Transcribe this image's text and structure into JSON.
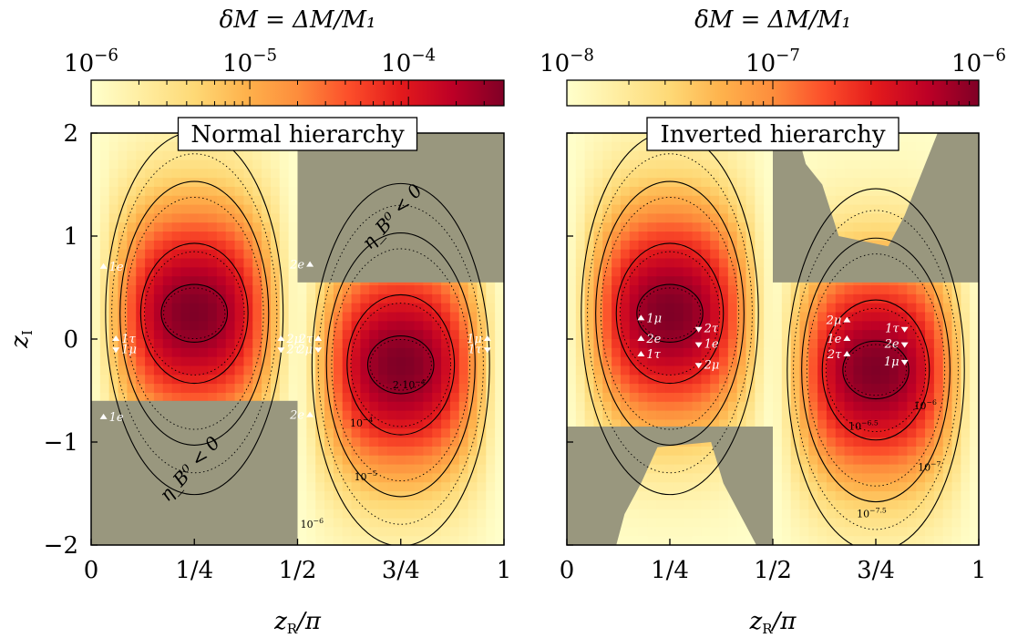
{
  "chart_data": [
    {
      "type": "heatmap",
      "title": "Normal hierarchy",
      "colorbar": {
        "label": "δM = ΔM/M₁",
        "scale": "log",
        "range": [
          1e-06,
          0.0004
        ],
        "ticks": [
          {
            "base": "10",
            "exp": "−6",
            "value": 1e-06
          },
          {
            "base": "10",
            "exp": "−5",
            "value": 1e-05
          },
          {
            "base": "10",
            "exp": "−4",
            "value": 0.0001
          }
        ]
      },
      "x": {
        "label_main": "z",
        "label_sub": "R",
        "label_tail": "/π",
        "range": [
          0,
          1
        ],
        "ticks": [
          {
            "v": 0,
            "t": "0"
          },
          {
            "v": 0.25,
            "t": "1/4"
          },
          {
            "v": 0.5,
            "t": "1/2"
          },
          {
            "v": 0.75,
            "t": "3/4"
          },
          {
            "v": 1,
            "t": "1"
          }
        ]
      },
      "y": {
        "label_main": "z",
        "label_sub": "I",
        "range": [
          -2,
          2
        ],
        "ticks": [
          {
            "v": 2,
            "t": "2"
          },
          {
            "v": 1,
            "t": "1"
          },
          {
            "v": 0,
            "t": "0"
          },
          {
            "v": -1,
            "t": "−1"
          },
          {
            "v": -2,
            "t": "−2"
          }
        ]
      },
      "masked_region_label": "η_B⁰ < 0",
      "masked_regions": [
        {
          "x": [
            0.5,
            1.0
          ],
          "y": [
            0.55,
            2.0
          ]
        },
        {
          "x": [
            0.0,
            0.5
          ],
          "y": [
            -2.0,
            -0.6
          ]
        }
      ],
      "hot_spots": [
        {
          "x": 0.25,
          "y": 0.25,
          "level": 1.0
        },
        {
          "x": 0.75,
          "y": -0.25,
          "level": 1.0
        }
      ],
      "contour_labels": [
        {
          "x": 0.77,
          "y": -0.48,
          "base": "2·10",
          "exp": "−4"
        },
        {
          "x": 0.655,
          "y": -0.85,
          "base": "10",
          "exp": "−4"
        },
        {
          "x": 0.665,
          "y": -1.37,
          "base": "10",
          "exp": "−5"
        },
        {
          "x": 0.535,
          "y": -1.83,
          "base": "10",
          "exp": "−6"
        }
      ],
      "markers": [
        {
          "x": 0.03,
          "y": 0.7,
          "t": "1e",
          "dir": "up"
        },
        {
          "x": 0.53,
          "y": 0.72,
          "t": "2e",
          "dir": "up"
        },
        {
          "x": 0.06,
          "y": 0.0,
          "t": "1τ",
          "dir": "up"
        },
        {
          "x": 0.06,
          "y": -0.1,
          "t": "1μ",
          "dir": "down"
        },
        {
          "x": 0.46,
          "y": 0.0,
          "t": "2μ",
          "dir": "up"
        },
        {
          "x": 0.46,
          "y": -0.1,
          "t": "2τ",
          "dir": "down"
        },
        {
          "x": 0.55,
          "y": 0.0,
          "t": "2τ",
          "dir": "up"
        },
        {
          "x": 0.55,
          "y": -0.1,
          "t": "2μ",
          "dir": "down"
        },
        {
          "x": 0.96,
          "y": 0.0,
          "t": "1μ",
          "dir": "up"
        },
        {
          "x": 0.96,
          "y": -0.1,
          "t": "1τ",
          "dir": "down"
        },
        {
          "x": 0.03,
          "y": -0.76,
          "t": "1e",
          "dir": "up"
        },
        {
          "x": 0.53,
          "y": -0.74,
          "t": "2e",
          "dir": "up"
        }
      ]
    },
    {
      "type": "heatmap",
      "title": "Inverted hierarchy",
      "colorbar": {
        "label": "δM = ΔM/M₁",
        "scale": "log",
        "range": [
          1e-08,
          1e-06
        ],
        "ticks": [
          {
            "base": "10",
            "exp": "−8",
            "value": 1e-08
          },
          {
            "base": "10",
            "exp": "−7",
            "value": 1e-07
          },
          {
            "base": "10",
            "exp": "−6",
            "value": 1e-06
          }
        ]
      },
      "x": {
        "label_main": "z",
        "label_sub": "R",
        "label_tail": "/π",
        "range": [
          0,
          1
        ],
        "ticks": [
          {
            "v": 0,
            "t": "0"
          },
          {
            "v": 0.25,
            "t": "1/4"
          },
          {
            "v": 0.5,
            "t": "1/2"
          },
          {
            "v": 0.75,
            "t": "3/4"
          },
          {
            "v": 1,
            "t": "1"
          }
        ]
      },
      "y": {
        "range": [
          -2,
          2
        ]
      },
      "masked_regions": [],
      "hot_spots": [
        {
          "x": 0.25,
          "y": 0.25,
          "level": 1.0
        },
        {
          "x": 0.75,
          "y": -0.3,
          "level": 1.0
        }
      ],
      "contour_labels": [
        {
          "x": 0.87,
          "y": -0.68,
          "base": "10",
          "exp": "−6"
        },
        {
          "x": 0.72,
          "y": -0.88,
          "base": "10",
          "exp": "−6.5"
        },
        {
          "x": 0.88,
          "y": -1.28,
          "base": "10",
          "exp": "−7"
        },
        {
          "x": 0.74,
          "y": -1.73,
          "base": "10",
          "exp": "−7.5"
        }
      ],
      "markers": [
        {
          "x": 0.18,
          "y": 0.2,
          "t": "1μ",
          "dir": "up"
        },
        {
          "x": 0.18,
          "y": 0.0,
          "t": "2e",
          "dir": "up"
        },
        {
          "x": 0.18,
          "y": -0.15,
          "t": "1τ",
          "dir": "up"
        },
        {
          "x": 0.32,
          "y": 0.1,
          "t": "2τ",
          "dir": "down"
        },
        {
          "x": 0.32,
          "y": -0.05,
          "t": "1e",
          "dir": "down"
        },
        {
          "x": 0.32,
          "y": -0.25,
          "t": "2μ",
          "dir": "down"
        },
        {
          "x": 0.68,
          "y": 0.18,
          "t": "2μ",
          "dir": "up"
        },
        {
          "x": 0.68,
          "y": 0.0,
          "t": "1e",
          "dir": "up"
        },
        {
          "x": 0.68,
          "y": -0.15,
          "t": "2τ",
          "dir": "up"
        },
        {
          "x": 0.82,
          "y": 0.1,
          "t": "1τ",
          "dir": "down"
        },
        {
          "x": 0.82,
          "y": -0.05,
          "t": "2e",
          "dir": "down"
        },
        {
          "x": 0.82,
          "y": -0.22,
          "t": "1μ",
          "dir": "down"
        }
      ]
    }
  ],
  "colors": {
    "masked": "#99977e",
    "colormap": [
      "#ffffcc",
      "#ffeda0",
      "#fed976",
      "#feb24c",
      "#fd8d3c",
      "#fc4e2a",
      "#e31a1c",
      "#bd0026",
      "#800026"
    ]
  }
}
